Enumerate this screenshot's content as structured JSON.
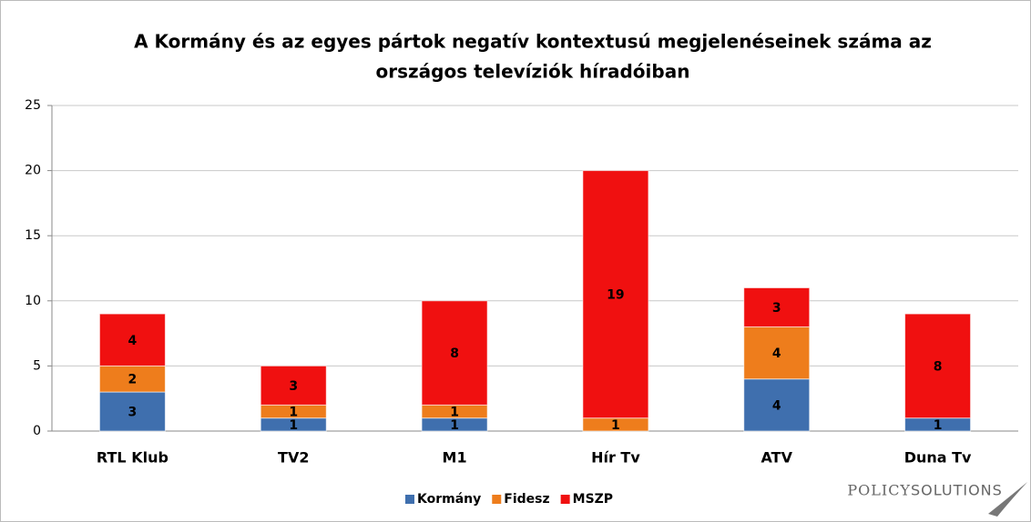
{
  "chart_data": {
    "type": "stacked_bar",
    "title": [
      "A Kormány és az egyes pártok negatív kontextusú megjelenéseinek száma az",
      "országos televíziók híradóiban"
    ],
    "categories": [
      "RTL Klub",
      "TV2",
      "M1",
      "Hír Tv",
      "ATV",
      "Duna Tv"
    ],
    "series": [
      {
        "name": "Kormány",
        "color": "#3f6fae",
        "values": [
          3,
          1,
          1,
          null,
          4,
          1
        ]
      },
      {
        "name": "Fidesz",
        "color": "#ee7d1c",
        "values": [
          2,
          1,
          1,
          1,
          4,
          null
        ]
      },
      {
        "name": "MSZP",
        "color": "#f01010",
        "values": [
          4,
          3,
          8,
          19,
          3,
          8
        ]
      }
    ],
    "ylim": [
      0,
      25
    ],
    "yticks": [
      0,
      5,
      10,
      15,
      20,
      25
    ],
    "grid": true,
    "legend": "bottom",
    "watermark": {
      "first": "POLICY",
      "second": "SOLUTIONS"
    }
  }
}
